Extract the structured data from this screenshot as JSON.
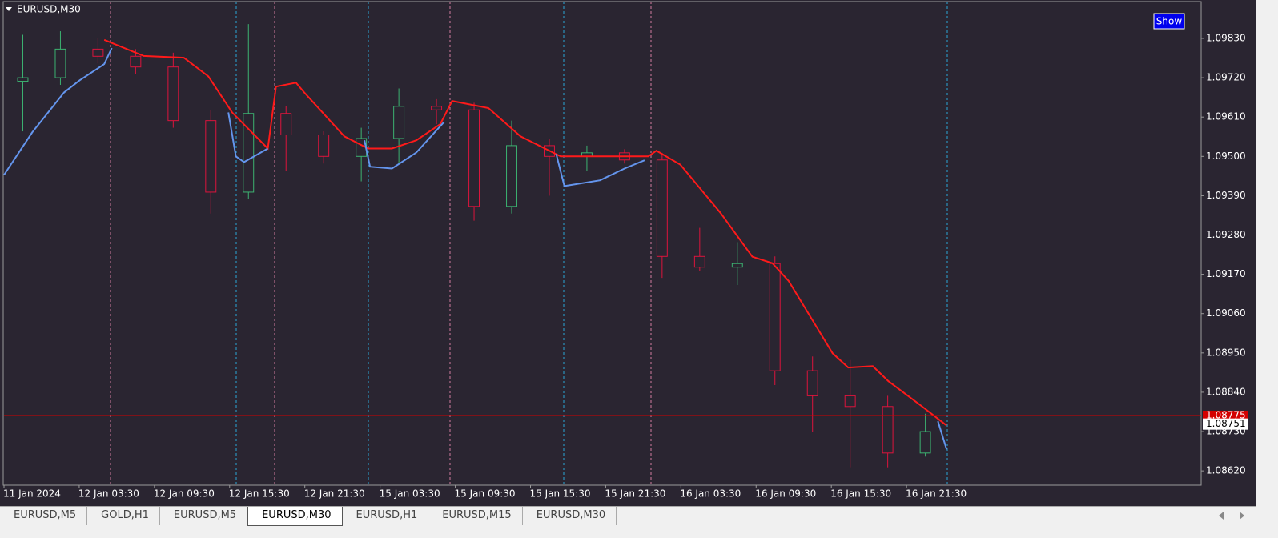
{
  "window": {
    "title": "EURUSD,M30",
    "button": "Show"
  },
  "chart_data": {
    "type": "candlestick",
    "x": [
      3,
      9,
      15,
      21,
      27,
      33,
      39,
      45,
      51,
      57,
      63,
      69,
      75,
      81,
      87,
      93,
      99,
      105,
      111,
      117,
      123,
      129,
      135,
      141,
      147
    ],
    "open": [
      1.0971,
      1.0972,
      1.098,
      1.0978,
      1.0975,
      1.096,
      1.094,
      1.0962,
      1.0956,
      1.095,
      1.0955,
      1.0964,
      1.0963,
      1.0936,
      1.0953,
      1.095,
      1.0951,
      1.0949,
      1.0922,
      1.0919,
      1.092,
      1.089,
      1.0883,
      1.088,
      1.0867
    ],
    "high": [
      1.0984,
      1.0985,
      1.0983,
      1.098,
      1.0979,
      1.0963,
      1.0987,
      1.0964,
      1.0957,
      1.0958,
      1.0969,
      1.0966,
      1.0965,
      1.096,
      1.0955,
      1.0953,
      1.0952,
      1.0951,
      1.093,
      1.0926,
      1.0922,
      1.0894,
      1.0893,
      1.0883,
      1.0878
    ],
    "low": [
      1.0957,
      1.097,
      1.0976,
      1.0973,
      1.0958,
      1.0934,
      1.0938,
      1.0946,
      1.0948,
      1.0943,
      1.0948,
      1.0959,
      1.0932,
      1.0934,
      1.0939,
      1.0946,
      1.0948,
      1.0916,
      1.0918,
      1.0914,
      1.0886,
      1.0873,
      1.0863,
      1.0863,
      1.0866
    ],
    "close": [
      1.0972,
      1.098,
      1.0978,
      1.0975,
      1.096,
      1.094,
      1.0962,
      1.0956,
      1.095,
      1.0955,
      1.0964,
      1.0963,
      1.0936,
      1.0953,
      1.095,
      1.0951,
      1.0949,
      1.0922,
      1.0919,
      1.092,
      1.089,
      1.0883,
      1.088,
      1.0867,
      1.0873
    ],
    "up_color": "#3cb371",
    "down_color": "#dc143c",
    "lines": [
      {
        "color": "#ff1a1a",
        "x": [
          16.0,
          22.3,
          28.7,
          32.6,
          36.4,
          42.1,
          43.4,
          46.6,
          47.9,
          54.3,
          58.1,
          61.9,
          65.8,
          69.6,
          71.5,
          77.3,
          82.4,
          88.8,
          102.8,
          104.1,
          107.9,
          114.3,
          119.4,
          122.6,
          125.2,
          132.2,
          134.7,
          138.6,
          141.1,
          146.2,
          150.4
        ],
        "values": [
          1.09826,
          1.09781,
          1.09776,
          1.09724,
          1.09623,
          1.09522,
          1.09695,
          1.09706,
          1.09679,
          1.09556,
          1.09522,
          1.09522,
          1.09545,
          1.0959,
          1.09655,
          1.09635,
          1.09556,
          1.095,
          1.095,
          1.09516,
          1.09477,
          1.09342,
          1.09219,
          1.09201,
          1.09151,
          1.08949,
          1.08909,
          1.08913,
          1.08871,
          1.08804,
          1.08747
        ]
      },
      {
        "color": "#6495ed",
        "x": [
          0,
          4.5,
          9.6,
          12.1,
          16.0,
          17.2,
          null,
          35.8,
          37.0,
          38.3,
          42.1,
          null,
          57.5,
          58.4,
          61.9,
          65.8,
          70.2,
          null,
          88.1,
          89.4,
          95.1,
          99.0,
          102.2,
          null,
          149.0,
          150.4
        ],
        "values": [
          1.09448,
          1.09567,
          1.09679,
          1.09713,
          1.09758,
          1.09803,
          null,
          1.09623,
          1.095,
          1.09484,
          1.09522,
          null,
          1.09545,
          1.09471,
          1.09466,
          1.09511,
          1.09596,
          null,
          1.09507,
          1.09417,
          1.09433,
          1.09466,
          1.09489,
          null,
          1.08759,
          1.0868
        ]
      }
    ],
    "xlim": [
      0,
      191
    ],
    "ylim": [
      1.0858,
      1.09933
    ],
    "xticks": [
      {
        "value": 0,
        "label": "11 Jan 2024"
      },
      {
        "value": 12,
        "label": "12 Jan 03:30"
      },
      {
        "value": 24,
        "label": "12 Jan 09:30"
      },
      {
        "value": 36,
        "label": "12 Jan 15:30"
      },
      {
        "value": 48,
        "label": "12 Jan 21:30"
      },
      {
        "value": 60,
        "label": "15 Jan 03:30"
      },
      {
        "value": 72,
        "label": "15 Jan 09:30"
      },
      {
        "value": 84,
        "label": "15 Jan 15:30"
      },
      {
        "value": 96,
        "label": "15 Jan 21:30"
      },
      {
        "value": 108,
        "label": "16 Jan 03:30"
      },
      {
        "value": 120,
        "label": "16 Jan 09:30"
      },
      {
        "value": 132,
        "label": "16 Jan 15:30"
      },
      {
        "value": 144,
        "label": "16 Jan 21:30"
      }
    ],
    "yticks": [
      {
        "value": 1.0983,
        "label": "1.09830"
      },
      {
        "value": 1.0972,
        "label": "1.09720"
      },
      {
        "value": 1.0961,
        "label": "1.09610"
      },
      {
        "value": 1.095,
        "label": "1.09500"
      },
      {
        "value": 1.0939,
        "label": "1.09390"
      },
      {
        "value": 1.0928,
        "label": "1.09280"
      },
      {
        "value": 1.0917,
        "label": "1.09170"
      },
      {
        "value": 1.0906,
        "label": "1.09060"
      },
      {
        "value": 1.0895,
        "label": "1.08950"
      },
      {
        "value": 1.0884,
        "label": "1.08840"
      },
      {
        "value": 1.0873,
        "label": "1.08730"
      },
      {
        "value": 1.0862,
        "label": "1.08620"
      }
    ],
    "price_line": {
      "value": 1.08775,
      "label": "1.08775",
      "color": "#d40000"
    },
    "bid_line": {
      "value": 1.08751,
      "label": "1.08751"
    },
    "grid": false
  },
  "tabs": {
    "items": [
      "EURUSD,M5",
      "GOLD,H1",
      "EURUSD,M5",
      "EURUSD,M30",
      "EURUSD,H1",
      "EURUSD,M15",
      "EURUSD,M30"
    ],
    "active": 3
  }
}
